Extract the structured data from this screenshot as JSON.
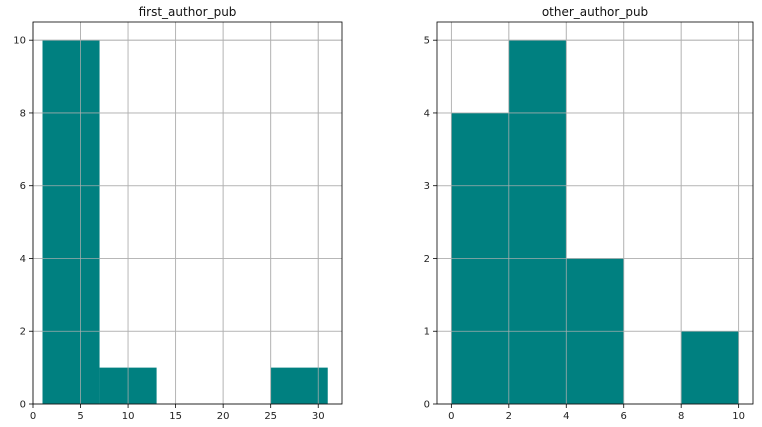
{
  "chart_data": [
    {
      "type": "bar",
      "title": "first_author_pub",
      "xlabel": "",
      "ylabel": "",
      "bars": [
        {
          "x0": 1,
          "x1": 7,
          "value": 10
        },
        {
          "x0": 7,
          "x1": 13,
          "value": 1
        },
        {
          "x0": 13,
          "x1": 19,
          "value": 0
        },
        {
          "x0": 19,
          "x1": 25,
          "value": 0
        },
        {
          "x0": 25,
          "x1": 31,
          "value": 1
        }
      ],
      "xlim": [
        0,
        32.5
      ],
      "ylim": [
        0,
        10.5
      ],
      "xticks": [
        0,
        5,
        10,
        15,
        20,
        25,
        30
      ],
      "yticks": [
        0,
        2,
        4,
        6,
        8,
        10
      ],
      "grid": true,
      "color": "#008080"
    },
    {
      "type": "bar",
      "title": "other_author_pub",
      "xlabel": "",
      "ylabel": "",
      "bars": [
        {
          "x0": 0,
          "x1": 2,
          "value": 4
        },
        {
          "x0": 2,
          "x1": 4,
          "value": 5
        },
        {
          "x0": 4,
          "x1": 6,
          "value": 2
        },
        {
          "x0": 6,
          "x1": 8,
          "value": 0
        },
        {
          "x0": 8,
          "x1": 10,
          "value": 1
        }
      ],
      "xlim": [
        -0.5,
        10.5
      ],
      "ylim": [
        0,
        5.25
      ],
      "xticks": [
        0,
        2,
        4,
        6,
        8,
        10
      ],
      "yticks": [
        0,
        1,
        2,
        3,
        4,
        5
      ],
      "grid": true,
      "color": "#008080"
    }
  ]
}
